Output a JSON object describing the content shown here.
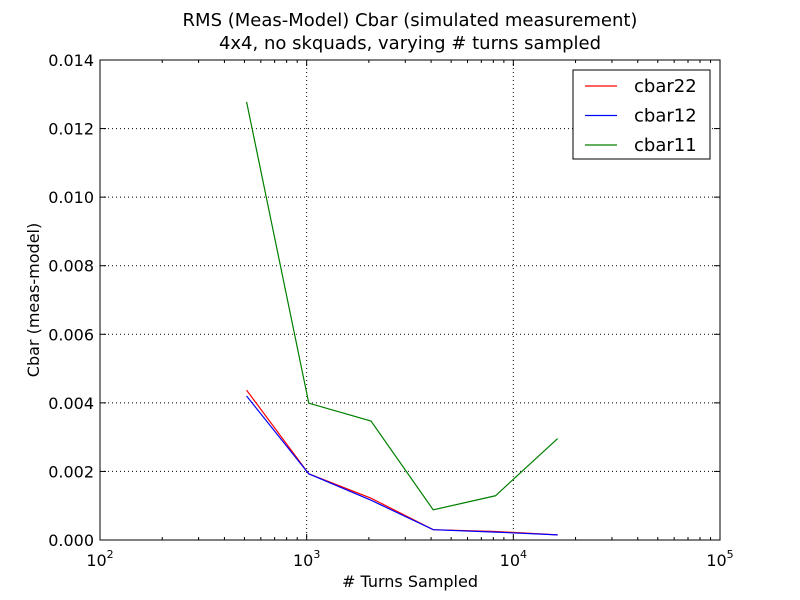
{
  "chart_data": {
    "type": "line",
    "title_line1": "RMS (Meas-Model) Cbar (simulated measurement)",
    "title_line2": "4x4, no skquads, varying # turns sampled",
    "xlabel": "# Turns Sampled",
    "ylabel": "Cbar (meas-model)",
    "x_scale": "log",
    "xlim": [
      100,
      100000
    ],
    "ylim": [
      0,
      0.014
    ],
    "x_ticks": [
      {
        "value": 100,
        "base": "10",
        "exp": "2"
      },
      {
        "value": 1000,
        "base": "10",
        "exp": "3"
      },
      {
        "value": 10000,
        "base": "10",
        "exp": "4"
      },
      {
        "value": 100000,
        "base": "10",
        "exp": "5"
      }
    ],
    "y_ticks": [
      {
        "value": 0,
        "label": "0.000"
      },
      {
        "value": 0.002,
        "label": "0.002"
      },
      {
        "value": 0.004,
        "label": "0.004"
      },
      {
        "value": 0.006,
        "label": "0.006"
      },
      {
        "value": 0.008,
        "label": "0.008"
      },
      {
        "value": 0.01,
        "label": "0.010"
      },
      {
        "value": 0.012,
        "label": "0.012"
      },
      {
        "value": 0.014,
        "label": "0.014"
      }
    ],
    "grid": true,
    "grid_style": "dotted",
    "legend_position": "top-right",
    "x": [
      512,
      1024,
      2048,
      4096,
      8192,
      16384
    ],
    "series": [
      {
        "name": "cbar22",
        "color": "#ff0000",
        "values": [
          0.00437,
          0.00193,
          0.00122,
          0.0003,
          0.00025,
          0.00015
        ]
      },
      {
        "name": "cbar12",
        "color": "#0000ff",
        "values": [
          0.0042,
          0.00193,
          0.00116,
          0.0003,
          0.00023,
          0.00015
        ]
      },
      {
        "name": "cbar11",
        "color": "#008000",
        "values": [
          0.01278,
          0.00399,
          0.00347,
          0.00088,
          0.00129,
          0.00296
        ]
      }
    ]
  }
}
